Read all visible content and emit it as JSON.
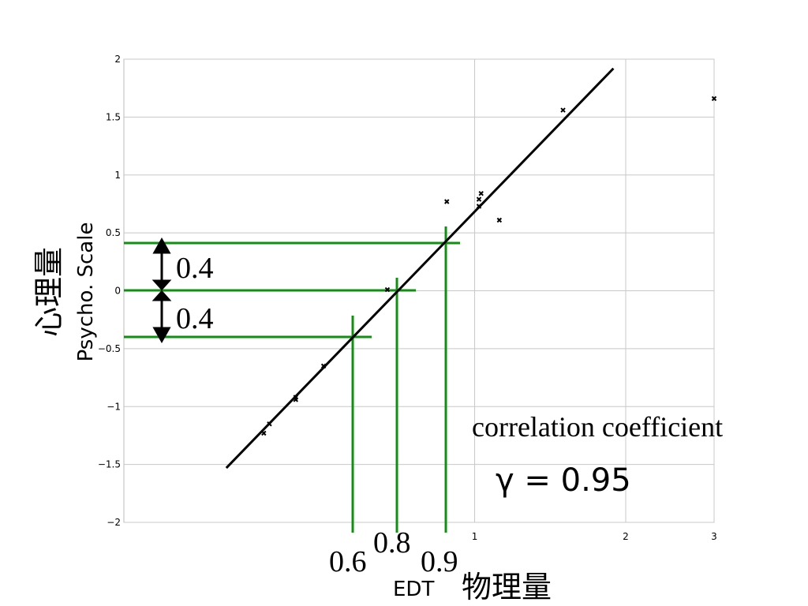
{
  "chart_data": {
    "type": "scatter",
    "x_log": true,
    "grid": true,
    "xlim": [
      0.2,
      3
    ],
    "xticks": [
      1,
      2,
      3
    ],
    "ylim": [
      -2,
      2
    ],
    "yticks": [
      {
        "value": -2,
        "label": "−2"
      },
      {
        "value": -1.5,
        "label": "−1.5"
      },
      {
        "value": -1,
        "label": "−1"
      },
      {
        "value": -0.5,
        "label": "−0.5"
      },
      0,
      0.5,
      1,
      1.5,
      2
    ],
    "y_label": "Psycho. Scale",
    "y_label_ja": "心理量",
    "x_label": "EDT",
    "x_label_ja": "物理量",
    "series": [
      {
        "color": "#000000",
        "x": [
          3,
          1.5,
          0.88,
          1.02,
          1.03,
          1.02,
          1.12,
          0.67,
          0.5,
          0.44,
          0.44,
          0.39,
          0.38
        ],
        "values": [
          1.66,
          1.56,
          0.77,
          0.79,
          0.84,
          0.73,
          0.61,
          0.01,
          -0.65,
          -0.92,
          -0.94,
          -1.15,
          -1.23
        ]
      }
    ],
    "trend_line": {
      "color": "#000000",
      "x": [
        0.32,
        1.89
      ],
      "values": [
        -1.53,
        1.92
      ]
    },
    "annotations": {
      "step_upper": "0.4",
      "step_lower": "0.4",
      "edt_low": "0.6",
      "edt_mid": "0.8",
      "edt_high": "0.9",
      "correlation_label": "correlation coefficient",
      "correlation_value": "γ = 0.95"
    }
  }
}
